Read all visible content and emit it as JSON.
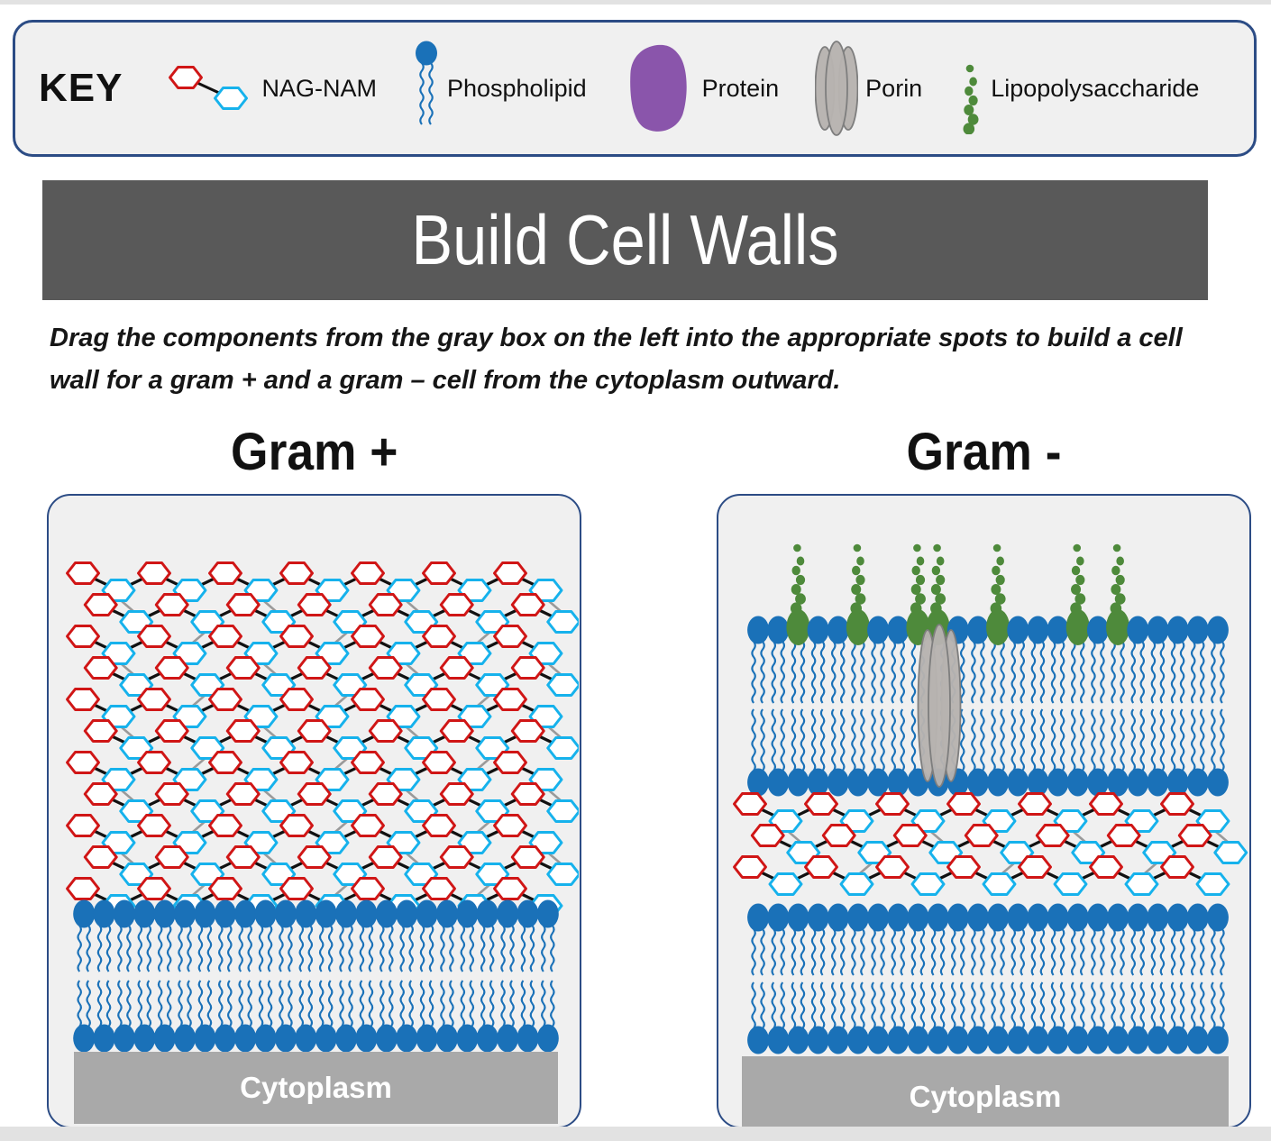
{
  "key": {
    "title": "KEY",
    "items": [
      {
        "name": "nag-nam",
        "label": "NAG-NAM"
      },
      {
        "name": "phospholipid",
        "label": "Phospholipid"
      },
      {
        "name": "protein",
        "label": "Protein"
      },
      {
        "name": "porin",
        "label": "Porin"
      },
      {
        "name": "lipopolysaccharide",
        "label": "Lipopolysaccharide"
      }
    ]
  },
  "title_banner": {
    "text": "Build Cell Walls"
  },
  "instructions": {
    "text": "Drag the components from the gray box on the left into the appropriate spots to build a cell wall for a gram + and a gram – cell from the cytoplasm outward."
  },
  "panels": [
    {
      "id": "gram-plus",
      "heading": "Gram +",
      "cytoplasm_label": "Cytoplasm",
      "structure": {
        "peptidoglycan_rows": 11,
        "membranes": 1,
        "porins": 0,
        "lps_chains": 0,
        "heads_per_leaflet": 24
      }
    },
    {
      "id": "gram-minus",
      "heading": "Gram -",
      "cytoplasm_label": "Cytoplasm",
      "structure": {
        "peptidoglycan_rows": 3,
        "membranes": 2,
        "porins": 1,
        "lps_chains": 7,
        "heads_per_leaflet": 24,
        "lps_head_indices": [
          2,
          5,
          8,
          9,
          12,
          16,
          18
        ]
      }
    }
  ],
  "colors": {
    "membrane_blue": "#1a71b8",
    "hex_red": "#d01616",
    "hex_cyan": "#16b2ec",
    "chain_black": "#111111",
    "crosslink_gray": "#9a9a9a",
    "lps_green": "#4e8a3b",
    "porin_fill": "#b7b3b0",
    "porin_stroke": "#7e7e7e",
    "protein_purple": "#8a55ab",
    "cytoplasm_gray": "#a9a9a9",
    "panel_bg": "#f0f0f0",
    "border_navy": "#2c4c85",
    "title_bg": "#595959",
    "edge_strip": "#e2e2e2"
  }
}
